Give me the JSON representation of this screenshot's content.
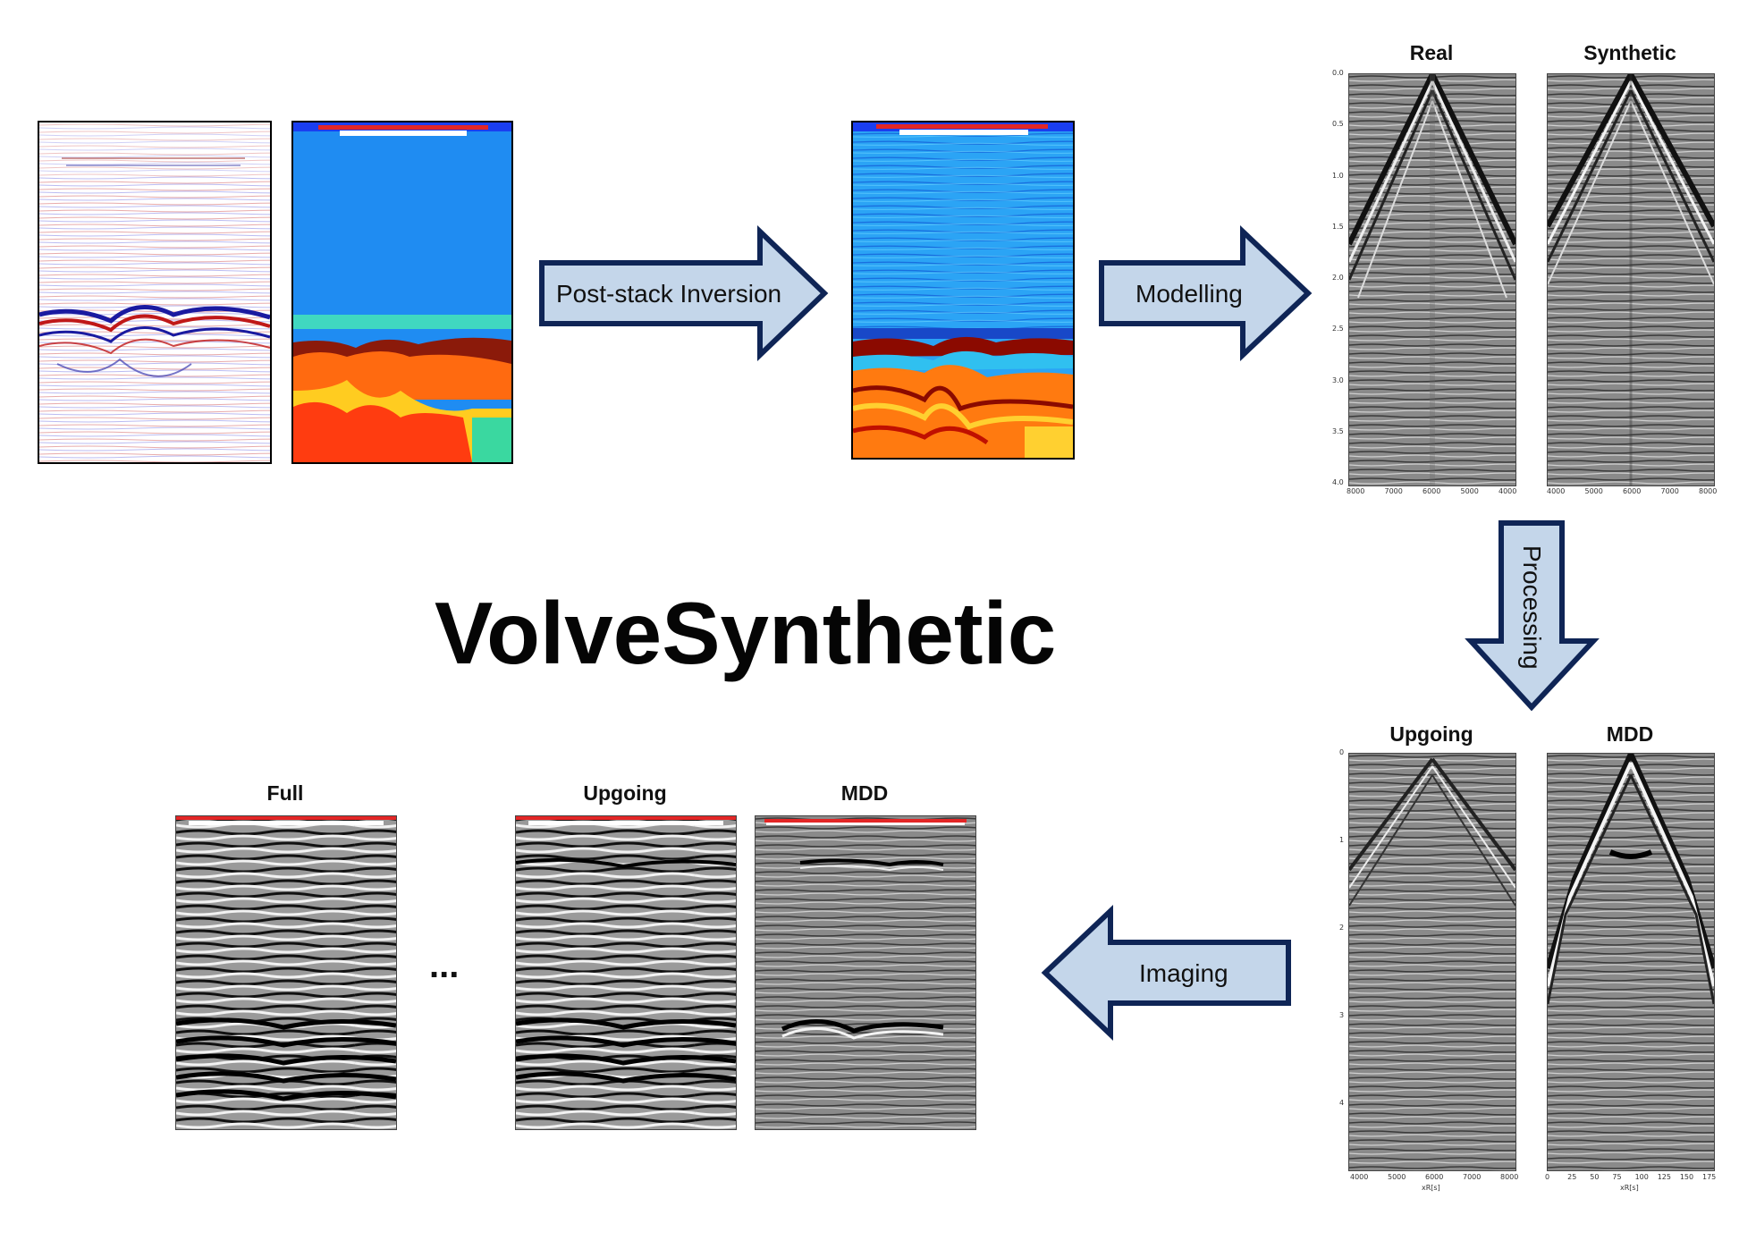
{
  "title": "VolveSynthetic",
  "arrows": {
    "post_stack": "Post-stack Inversion",
    "modelling": "Modelling",
    "processing": "Processing",
    "imaging": "Imaging"
  },
  "gathers_top": {
    "real_title": "Real",
    "synthetic_title": "Synthetic",
    "y_ticks": [
      "0.0",
      "0.5",
      "1.0",
      "1.5",
      "2.0",
      "2.5",
      "3.0",
      "3.5",
      "4.0"
    ],
    "real_x_ticks": [
      "8000",
      "7000",
      "6000",
      "5000",
      "4000"
    ],
    "synthetic_x_ticks": [
      "4000",
      "5000",
      "6000",
      "7000",
      "8000"
    ]
  },
  "gathers_bottom": {
    "upgoing_title": "Upgoing",
    "mdd_title": "MDD",
    "y_ticks": [
      "0",
      "1",
      "2",
      "3",
      "4"
    ],
    "upgoing_x_ticks": [
      "4000",
      "5000",
      "6000",
      "7000",
      "8000"
    ],
    "mdd_x_ticks": [
      "0",
      "25",
      "50",
      "75",
      "100",
      "125",
      "150",
      "175"
    ],
    "upgoing_xlabel": "xR[s]",
    "mdd_xlabel": "xR[s]"
  },
  "images": {
    "full_title": "Full",
    "upgoing_title": "Upgoing",
    "mdd_title": "MDD",
    "ellipsis": "..."
  },
  "colors": {
    "arrow_fill": "#c4d6ea",
    "arrow_stroke": "#0f2556",
    "seismic_gray": "#8a8a8a",
    "accent_red": "#e32626"
  }
}
